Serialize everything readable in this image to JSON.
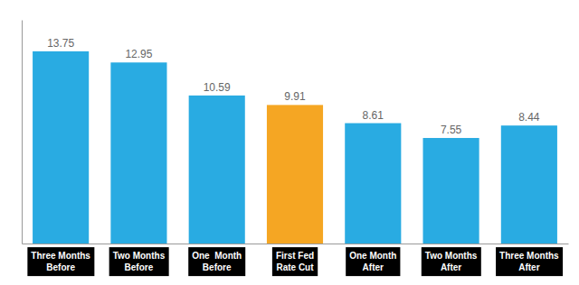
{
  "chart_data": {
    "type": "bar",
    "categories": [
      "Three Months\nBefore",
      "Two Months\nBefore",
      "One  Month\nBefore",
      "First Fed\nRate Cut",
      "One Month\nAfter",
      "Two Months\nAfter",
      "Three Months\nAfter"
    ],
    "values": [
      13.75,
      12.95,
      10.59,
      9.91,
      8.61,
      7.55,
      8.44
    ],
    "colors": [
      "#29ABE2",
      "#29ABE2",
      "#29ABE2",
      "#F5A623",
      "#29ABE2",
      "#29ABE2",
      "#29ABE2"
    ],
    "ylim": [
      0,
      16
    ],
    "grid": false,
    "data_labels": true,
    "tick_labels": "x"
  }
}
